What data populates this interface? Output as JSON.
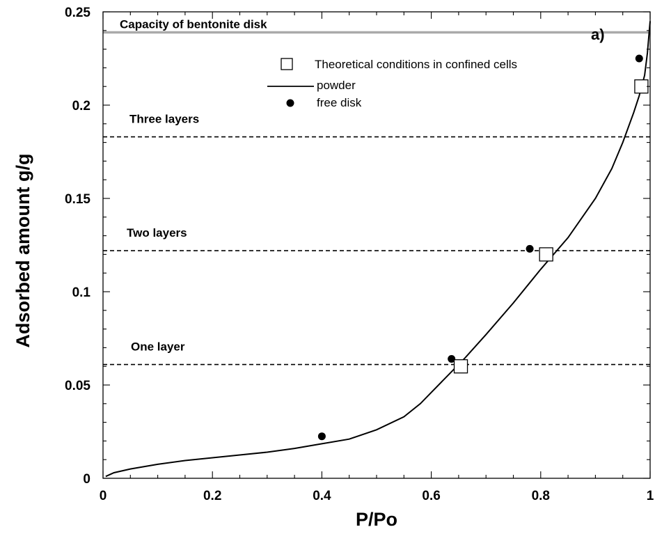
{
  "chart_data": {
    "type": "scatter",
    "xlabel": "P/Po",
    "ylabel": "Adsorbed amount g/g",
    "xlim": [
      0,
      1
    ],
    "ylim": [
      0,
      0.25
    ],
    "x_ticks": [
      "0",
      "0.2",
      "0.4",
      "0.6",
      "0.8",
      "1"
    ],
    "y_ticks": [
      "0",
      "0.05",
      "0.1",
      "0.15",
      "0.2",
      "0.25"
    ],
    "grid": false,
    "legend_position": "top-right",
    "panel_label": "a)",
    "series": [
      {
        "name": "powder",
        "kind": "line",
        "color": "#000000",
        "x": [
          0.005,
          0.02,
          0.05,
          0.1,
          0.15,
          0.2,
          0.25,
          0.3,
          0.35,
          0.4,
          0.45,
          0.5,
          0.55,
          0.58,
          0.6,
          0.62,
          0.64,
          0.66,
          0.7,
          0.75,
          0.8,
          0.85,
          0.9,
          0.93,
          0.95,
          0.97,
          0.98,
          0.99,
          0.995,
          1.0
        ],
        "y": [
          0.001,
          0.003,
          0.005,
          0.0075,
          0.0095,
          0.011,
          0.0125,
          0.014,
          0.016,
          0.0185,
          0.021,
          0.026,
          0.033,
          0.04,
          0.046,
          0.052,
          0.058,
          0.064,
          0.077,
          0.094,
          0.112,
          0.129,
          0.15,
          0.166,
          0.18,
          0.196,
          0.205,
          0.216,
          0.228,
          0.245
        ]
      },
      {
        "name": "free disk",
        "kind": "point",
        "marker": "filled-circle",
        "color": "#000000",
        "x": [
          0.4,
          0.637,
          0.78,
          0.98
        ],
        "y": [
          0.0225,
          0.064,
          0.123,
          0.225
        ]
      },
      {
        "name": "Theoretical conditions in confined cells",
        "kind": "point",
        "marker": "open-square",
        "color": "#000000",
        "x": [
          0.654,
          0.81,
          0.984
        ],
        "y": [
          0.06,
          0.12,
          0.21
        ]
      }
    ],
    "reference_lines": [
      {
        "label": "Capacity of bentonite disk",
        "y": 0.239,
        "style": "solid",
        "color": "#aaaaaa"
      },
      {
        "label": "Three layers",
        "y": 0.183,
        "style": "dashed",
        "color": "#000000"
      },
      {
        "label": "Two layers",
        "y": 0.122,
        "style": "dashed",
        "color": "#000000"
      },
      {
        "label": "One layer",
        "y": 0.061,
        "style": "dashed",
        "color": "#000000"
      }
    ]
  }
}
